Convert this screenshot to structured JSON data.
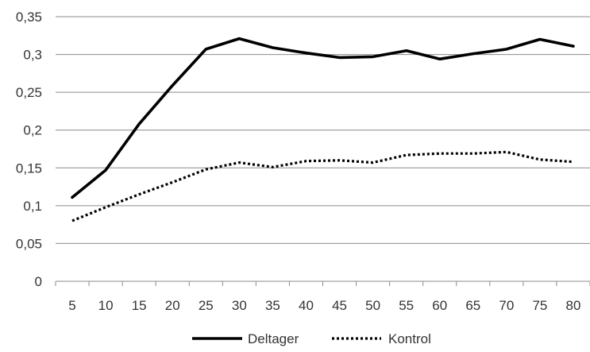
{
  "chart_data": {
    "type": "line",
    "title": "",
    "xlabel": "",
    "ylabel": "",
    "x": [
      5,
      10,
      15,
      20,
      25,
      30,
      35,
      40,
      45,
      50,
      55,
      60,
      65,
      70,
      75,
      80
    ],
    "x_tick_labels": [
      "5",
      "10",
      "15",
      "20",
      "25",
      "30",
      "35",
      "40",
      "45",
      "50",
      "55",
      "60",
      "65",
      "70",
      "75",
      "80"
    ],
    "ylim": [
      0,
      0.35
    ],
    "y_ticks": [
      0,
      0.05,
      0.1,
      0.15,
      0.2,
      0.25,
      0.3,
      0.35
    ],
    "y_tick_labels": [
      "0",
      "0,05",
      "0,1",
      "0,15",
      "0,2",
      "0,25",
      "0,3",
      "0,35"
    ],
    "grid": "horizontal",
    "legend_position": "bottom",
    "series": [
      {
        "name": "Deltager",
        "style": "solid",
        "color": "#000000",
        "values": [
          0.111,
          0.147,
          0.208,
          0.259,
          0.307,
          0.321,
          0.309,
          0.302,
          0.296,
          0.297,
          0.305,
          0.294,
          0.301,
          0.307,
          0.32,
          0.311
        ]
      },
      {
        "name": "Kontrol",
        "style": "dotted",
        "color": "#000000",
        "values": [
          0.08,
          0.098,
          0.115,
          0.131,
          0.148,
          0.157,
          0.151,
          0.159,
          0.16,
          0.157,
          0.167,
          0.169,
          0.169,
          0.171,
          0.161,
          0.158
        ]
      }
    ]
  }
}
